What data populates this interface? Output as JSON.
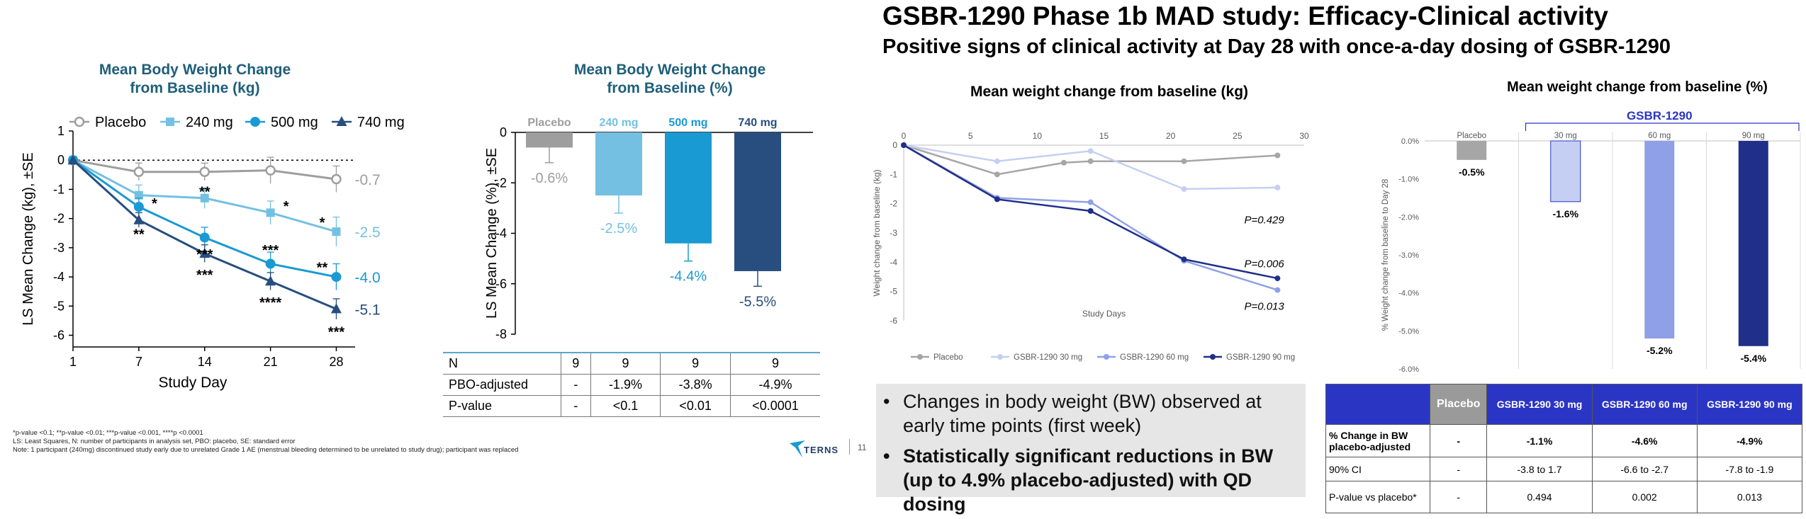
{
  "page": {
    "main_title": "GSBR-1290 Phase 1b MAD study: Efficacy-Clinical activity",
    "subtitle": "Positive signs of clinical activity at Day 28 with once-a-day dosing of GSBR-1290",
    "slide_number": "11",
    "logo_text": "TERNS",
    "footnotes": [
      "*p-value <0.1; **p-value <0.01; ***p-value <0.001, ****p <0.0001",
      "LS: Least Squares, N: number of participants in analysis set, PBO: placebo, SE: standard error",
      "Note: 1 participant (240mg) discontinued study early due to unrelated Grade 1 AE (menstrual bleeding determined to be unrelated to study drug); participant was replaced"
    ],
    "bullets": [
      "Changes in body weight (BW) observed at early time points (first week)",
      "Statistically significant reductions in BW (up to 4.9% placebo-adjusted) with QD dosing"
    ]
  },
  "chart_data": [
    {
      "type": "line",
      "title_lines": [
        "Mean Body Weight Change",
        "from Baseline (kg)"
      ],
      "xlabel": "Study Day",
      "ylabel": "LS Mean Change (kg), ±SE",
      "x_ticks": [
        "1",
        "7",
        "14",
        "21",
        "28"
      ],
      "xlim": [
        1,
        31
      ],
      "ylim": [
        -6.4,
        1
      ],
      "y_ticks": [
        "1",
        "0",
        "-1",
        "-2",
        "-3",
        "-4",
        "-5",
        "-6"
      ],
      "legend_position": "top",
      "series": [
        {
          "name": "Placebo",
          "color": "#9e9e9e",
          "marker": "open-circle",
          "x": [
            1,
            8,
            15,
            22,
            29
          ],
          "y": [
            0,
            -0.4,
            -0.4,
            -0.35,
            -0.65
          ],
          "se": [
            0,
            0.3,
            0.3,
            0.45,
            0.45
          ],
          "end_label": "-0.7",
          "sig": [
            "",
            "",
            "",
            "",
            ""
          ]
        },
        {
          "name": "240 mg",
          "color": "#74c0e2",
          "marker": "square",
          "x": [
            1,
            8,
            15,
            22,
            29
          ],
          "y": [
            0,
            -1.2,
            -1.3,
            -1.8,
            -2.45
          ],
          "se": [
            0,
            0.35,
            0.35,
            0.4,
            0.5
          ],
          "end_label": "-2.5",
          "sig": [
            "",
            "*",
            "**",
            "*",
            "*"
          ]
        },
        {
          "name": "500 mg",
          "color": "#1a9ad2",
          "marker": "circle",
          "x": [
            1,
            8,
            15,
            22,
            29
          ],
          "y": [
            0,
            -1.6,
            -2.65,
            -3.55,
            -4.0
          ],
          "se": [
            0,
            0.3,
            0.35,
            0.4,
            0.45
          ],
          "end_label": "-4.0",
          "sig": [
            "",
            "",
            "***",
            "***",
            "**"
          ]
        },
        {
          "name": "740 mg",
          "color": "#274e7e",
          "marker": "triangle",
          "x": [
            1,
            8,
            15,
            22,
            29
          ],
          "y": [
            0,
            -2.05,
            -3.2,
            -4.15,
            -5.1
          ],
          "se": [
            0,
            0.25,
            0.3,
            0.3,
            0.35
          ],
          "end_label": "-5.1",
          "sig": [
            "",
            "**",
            "***",
            "****",
            "***"
          ]
        }
      ]
    },
    {
      "type": "bar",
      "title_lines": [
        "Mean Body Weight Change",
        "from Baseline (%)"
      ],
      "ylabel": "LS Mean Change (%), ±SE",
      "ylim": [
        -8,
        0
      ],
      "y_ticks": [
        "0",
        "-2",
        "-4",
        "-6",
        "-8"
      ],
      "categories": [
        "Placebo",
        "240 mg",
        "500 mg",
        "740 mg"
      ],
      "values": [
        -0.6,
        -2.5,
        -4.4,
        -5.5
      ],
      "value_labels": [
        "-0.6%",
        "-2.5%",
        "-4.4%",
        "-5.5%"
      ],
      "se": [
        0.6,
        0.7,
        0.7,
        0.6
      ],
      "colors": [
        "#9e9e9e",
        "#74c0e2",
        "#1a9ad2",
        "#274e7e"
      ],
      "table": {
        "rows": [
          {
            "label": "N",
            "values": [
              "9",
              "9",
              "9",
              "9"
            ]
          },
          {
            "label": "PBO-adjusted",
            "values": [
              "-",
              "-1.9%",
              "-3.8%",
              "-4.9%"
            ]
          },
          {
            "label": "P-value",
            "values": [
              "-",
              "<0.1",
              "<0.01",
              "<0.0001"
            ]
          }
        ]
      }
    },
    {
      "type": "line",
      "title": "Mean weight change from baseline (kg)",
      "xlabel": "Study Days",
      "ylabel": "Weight change from baseline (kg)",
      "xlim": [
        0,
        30
      ],
      "ylim": [
        -6,
        0
      ],
      "x_ticks": [
        "0",
        "5",
        "10",
        "15",
        "20",
        "25",
        "30"
      ],
      "y_ticks": [
        "0",
        "-1",
        "-2",
        "-3",
        "-4",
        "-5",
        "-6"
      ],
      "legend_position": "bottom",
      "series": [
        {
          "name": "Placebo",
          "color": "#a6a6a6",
          "x": [
            0,
            7,
            12,
            14,
            21,
            28
          ],
          "y": [
            0,
            -1.0,
            -0.6,
            -0.55,
            -0.55,
            -0.35
          ]
        },
        {
          "name": "GSBR-1290 30 mg",
          "color": "#c5cff3",
          "x": [
            0,
            7,
            14,
            21,
            28
          ],
          "y": [
            0,
            -0.55,
            -0.2,
            -1.5,
            -1.45
          ]
        },
        {
          "name": "GSBR-1290 60 mg",
          "color": "#8fa0e6",
          "x": [
            0,
            7,
            14,
            21,
            28
          ],
          "y": [
            0,
            -1.8,
            -1.95,
            -3.95,
            -4.95
          ]
        },
        {
          "name": "GSBR-1290 90 mg",
          "color": "#1f2f8a",
          "x": [
            0,
            7,
            14,
            21,
            28
          ],
          "y": [
            0,
            -1.85,
            -2.25,
            -3.9,
            -4.55
          ]
        }
      ],
      "annotations": [
        {
          "text": "P=0.429",
          "x": 28.5,
          "y": -2.55
        },
        {
          "text": "P=0.006",
          "x": 28.5,
          "y": -4.05
        },
        {
          "text": "P=0.013",
          "x": 28.5,
          "y": -5.5
        }
      ]
    },
    {
      "type": "bar",
      "title": "Mean weight change from baseline (%)",
      "group_label": "GSBR-1290",
      "ylabel": "% Weight change from baseline to Day 28",
      "ylim": [
        -6,
        0
      ],
      "y_ticks": [
        "0.0%",
        "-1.0%",
        "-2.0%",
        "-3.0%",
        "-4.0%",
        "-5.0%",
        "-6.0%"
      ],
      "categories": [
        "Placebo",
        "30 mg",
        "60 mg",
        "90 mg"
      ],
      "values": [
        -0.5,
        -1.6,
        -5.2,
        -5.4
      ],
      "value_labels": [
        "-0.5%",
        "-1.6%",
        "-5.2%",
        "-5.4%"
      ],
      "colors": [
        "#a6a6a6",
        "#c5cff3",
        "#8fa0e6",
        "#1f2f8a"
      ],
      "table": {
        "headers": [
          "",
          "Placebo",
          "GSBR-1290 30 mg",
          "GSBR-1290 60 mg",
          "GSBR-1290 90 mg"
        ],
        "rows": [
          {
            "label": "% Change in BW placebo-adjusted",
            "values": [
              "-",
              "-1.1%",
              "-4.6%",
              "-4.9%"
            ]
          },
          {
            "label": "90% CI",
            "values": [
              "-",
              "-3.8 to 1.7",
              "-6.6 to -2.7",
              "-7.8 to -1.9"
            ]
          },
          {
            "label": "P-value vs placebo*",
            "values": [
              "-",
              "0.494",
              "0.002",
              "0.013"
            ]
          }
        ]
      }
    }
  ]
}
